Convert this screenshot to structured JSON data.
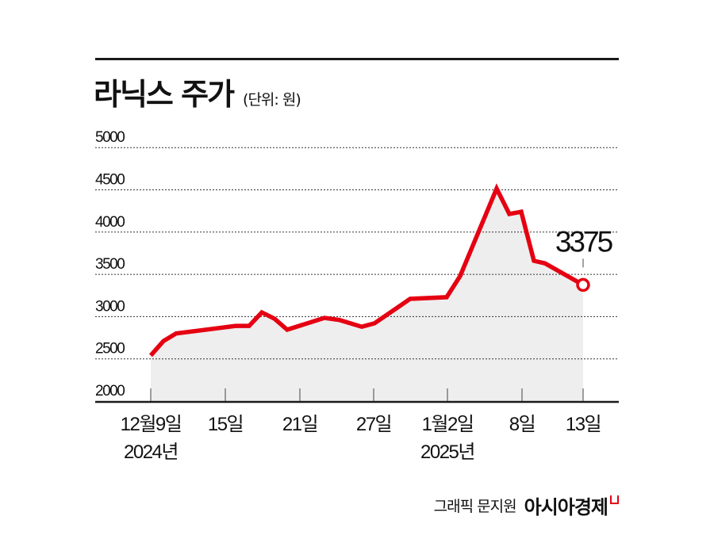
{
  "header": {
    "title": "라닉스 주가",
    "unit": "(단위: 원)"
  },
  "credit": {
    "text": "그래픽 문지원",
    "brand": "아시아경제"
  },
  "colors": {
    "line": "#e50012",
    "area": "#eeeeee",
    "grid": "#333333",
    "axis": "#1a1a1a"
  },
  "callout": {
    "label": "3375",
    "value": 3375
  },
  "chart_data": {
    "type": "area",
    "title": "라닉스 주가",
    "subtitle": "(단위: 원)",
    "xlabel": "",
    "ylabel": "원",
    "ylim": [
      2000,
      5000
    ],
    "yticks": [
      2000,
      2500,
      3000,
      3500,
      4000,
      4500,
      5000
    ],
    "ytick_labels": [
      "2000",
      "2500",
      "3000",
      "3500",
      "4000",
      "4500",
      "5000"
    ],
    "xticks": [
      {
        "label": "12월9일",
        "sublabel": "2024년"
      },
      {
        "label": "15일",
        "sublabel": ""
      },
      {
        "label": "21일",
        "sublabel": ""
      },
      {
        "label": "27일",
        "sublabel": ""
      },
      {
        "label": "1월2일",
        "sublabel": "2025년"
      },
      {
        "label": "8일",
        "sublabel": ""
      },
      {
        "label": "13일",
        "sublabel": ""
      }
    ],
    "grid": "horizontal dotted",
    "legend": "none",
    "annotation": {
      "text": "3375",
      "at": "13일"
    },
    "series": [
      {
        "name": "라닉스 주가",
        "x": [
          "12/9",
          "12/10",
          "12/11",
          "12/16",
          "12/17",
          "12/18",
          "12/19",
          "12/20",
          "12/23",
          "12/24",
          "12/26",
          "12/27",
          "12/30",
          "1/2",
          "1/3",
          "1/6",
          "1/7",
          "1/8",
          "1/9",
          "1/10",
          "1/13"
        ],
        "values": [
          2540,
          2710,
          2800,
          2890,
          2890,
          3050,
          2975,
          2845,
          2985,
          2960,
          2880,
          2920,
          3210,
          3230,
          3480,
          4515,
          4215,
          4240,
          3660,
          3630,
          3375
        ]
      }
    ]
  }
}
